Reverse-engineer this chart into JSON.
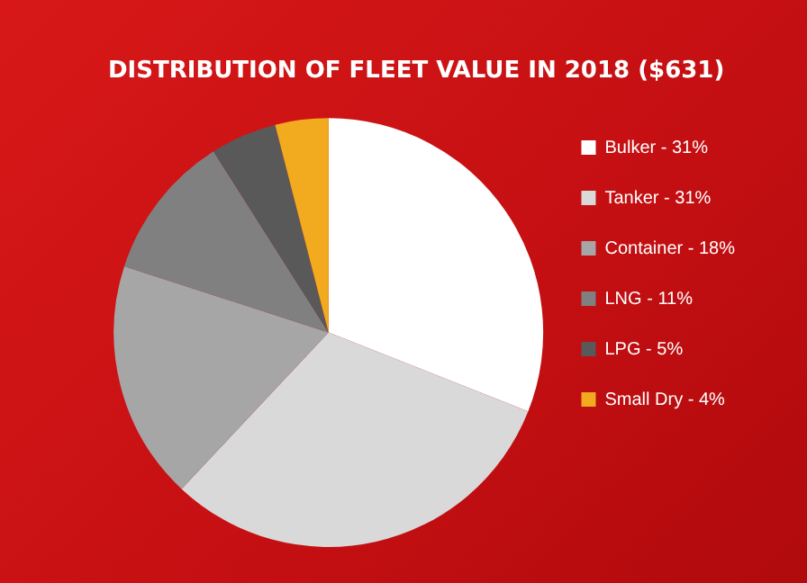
{
  "chart_data": {
    "type": "pie",
    "title": "DISTRIBUTION OF FLEET VALUE IN 2018 ($631)",
    "categories": [
      "Bulker",
      "Tanker",
      "Container",
      "LNG",
      "LPG",
      "Small Dry"
    ],
    "values": [
      31,
      31,
      18,
      11,
      5,
      4
    ],
    "value_labels": [
      "31%",
      "31%",
      "18%",
      "11%",
      "5%",
      "4%"
    ],
    "colors": [
      "#ffffff",
      "#d9d9d9",
      "#a6a6a6",
      "#808080",
      "#595959",
      "#f2aa1f"
    ],
    "legend": "right"
  }
}
